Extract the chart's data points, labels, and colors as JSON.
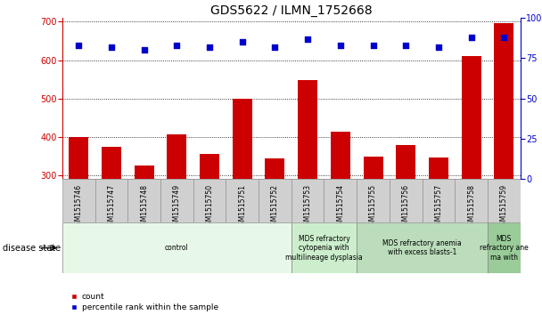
{
  "title": "GDS5622 / ILMN_1752668",
  "samples": [
    "GSM1515746",
    "GSM1515747",
    "GSM1515748",
    "GSM1515749",
    "GSM1515750",
    "GSM1515751",
    "GSM1515752",
    "GSM1515753",
    "GSM1515754",
    "GSM1515755",
    "GSM1515756",
    "GSM1515757",
    "GSM1515758",
    "GSM1515759"
  ],
  "counts": [
    400,
    375,
    325,
    407,
    357,
    500,
    344,
    548,
    413,
    350,
    380,
    347,
    610,
    695
  ],
  "percentiles": [
    83,
    82,
    80,
    83,
    82,
    85,
    82,
    87,
    83,
    83,
    83,
    82,
    88,
    88
  ],
  "ylim_left": [
    290,
    710
  ],
  "ylim_right": [
    0,
    100
  ],
  "yticks_left": [
    300,
    400,
    500,
    600,
    700
  ],
  "yticks_right": [
    0,
    25,
    50,
    75,
    100
  ],
  "bar_color": "#cc0000",
  "scatter_color": "#0000cc",
  "disease_groups": [
    {
      "label": "control",
      "start": 0,
      "end": 7,
      "color": "#e8f8e8"
    },
    {
      "label": "MDS refractory\ncytopenia with\nmultilineage dysplasia",
      "start": 7,
      "end": 9,
      "color": "#cceecc"
    },
    {
      "label": "MDS refractory anemia\nwith excess blasts-1",
      "start": 9,
      "end": 13,
      "color": "#bbddbb"
    },
    {
      "label": "MDS\nrefractory ane\nma with",
      "start": 13,
      "end": 14,
      "color": "#99cc99"
    }
  ],
  "legend_count_label": "count",
  "legend_percentile_label": "percentile rank within the sample",
  "disease_state_label": "disease state",
  "title_fontsize": 10,
  "tick_fontsize": 7,
  "sample_fontsize": 5.5
}
